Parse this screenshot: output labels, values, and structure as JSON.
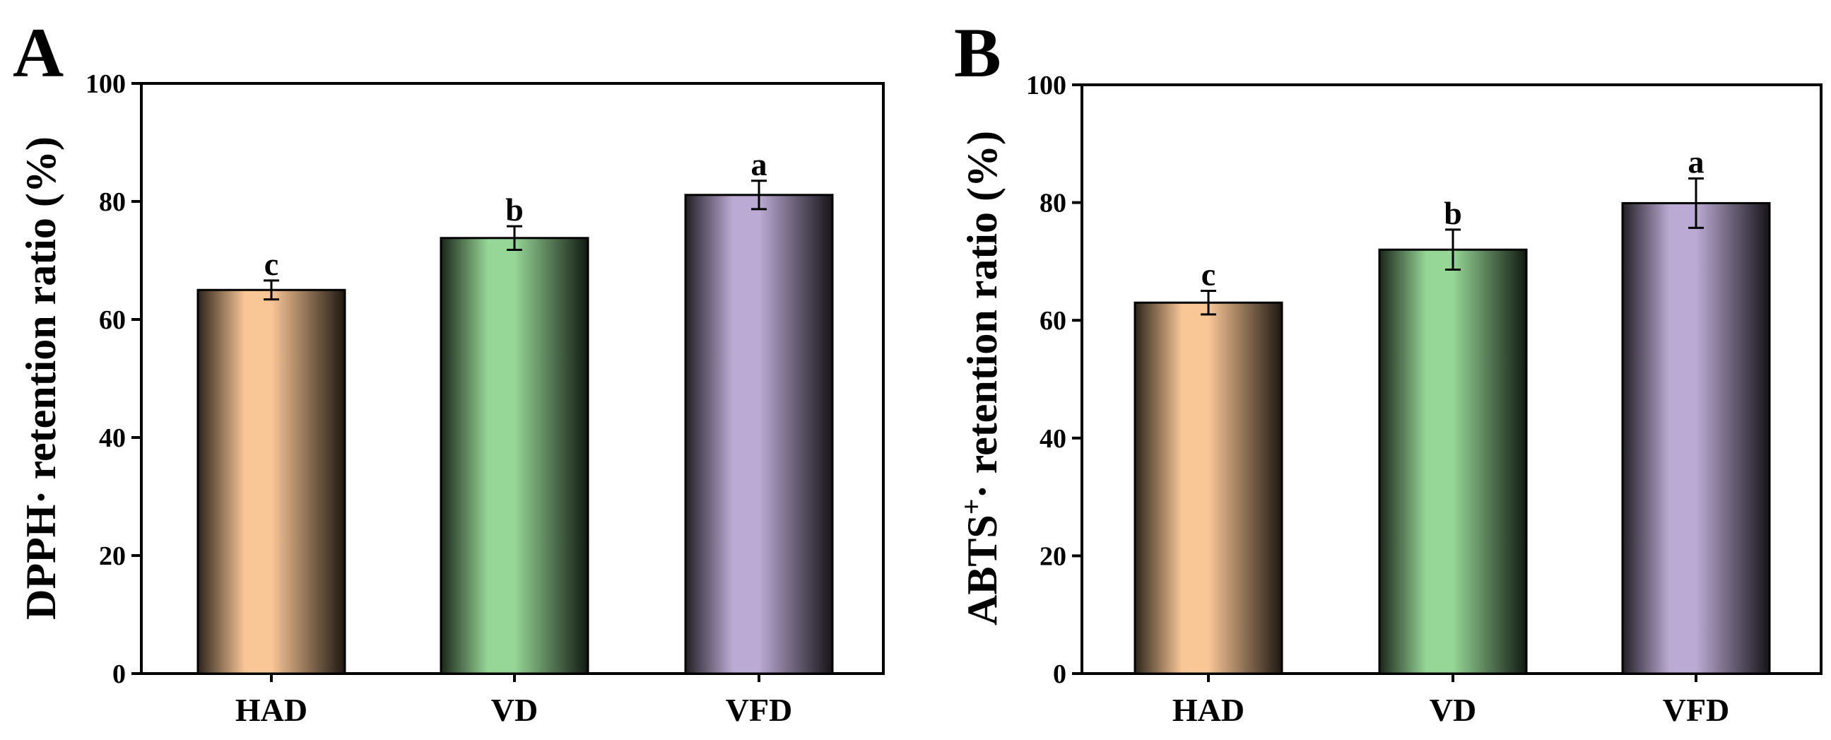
{
  "chart_data": [
    {
      "panel": "A",
      "type": "bar",
      "title": "",
      "xlabel": "",
      "ylabel": "DPPH· retention ratio (%)",
      "ylim": [
        0,
        100
      ],
      "yticks": [
        0,
        20,
        40,
        60,
        80,
        100
      ],
      "categories": [
        "HAD",
        "VD",
        "VFD"
      ],
      "values": [
        65,
        73.8,
        81.1
      ],
      "errors": [
        1.6,
        2.0,
        2.4
      ],
      "significance": [
        "c",
        "b",
        "a"
      ],
      "colors": [
        "#F9C696",
        "#96D696",
        "#BBAAD3"
      ],
      "grid": false
    },
    {
      "panel": "B",
      "type": "bar",
      "title": "",
      "xlabel": "",
      "ylabel": "ABTS+· retention ratio (%)",
      "ylabel_parts": {
        "base": "ABTS",
        "sup": "+",
        "rest": "· retention ratio (%)"
      },
      "ylim": [
        0,
        100
      ],
      "yticks": [
        0,
        20,
        40,
        60,
        80,
        100
      ],
      "categories": [
        "HAD",
        "VD",
        "VFD"
      ],
      "values": [
        63,
        72,
        79.9
      ],
      "errors": [
        2.0,
        3.4,
        4.2
      ],
      "significance": [
        "c",
        "b",
        "a"
      ],
      "colors": [
        "#F9C696",
        "#96D696",
        "#BBAAD3"
      ],
      "grid": false
    }
  ]
}
